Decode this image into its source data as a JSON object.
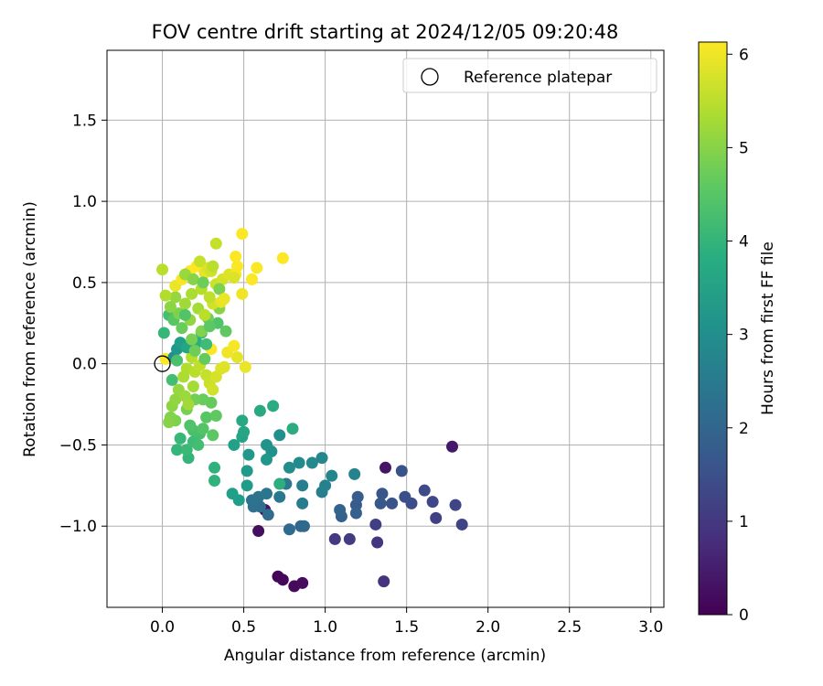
{
  "chart_data": {
    "type": "scatter",
    "title": "FOV centre drift starting at 2024/12/05 09:20:48",
    "xlabel": "Angular distance from reference (arcmin)",
    "ylabel": "Rotation from reference (arcmin)",
    "xlim": [
      -0.34,
      3.08
    ],
    "ylim": [
      -1.5,
      1.93
    ],
    "x_ticks": [
      "0.0",
      "0.5",
      "1.0",
      "1.5",
      "2.0",
      "2.5",
      "3.0"
    ],
    "y_ticks": [
      "−1.0",
      "−0.5",
      "0.0",
      "0.5",
      "1.0",
      "1.5"
    ],
    "grid": true,
    "legend": {
      "position": "top-right",
      "entries": [
        "Reference platepar"
      ]
    },
    "reference_point": {
      "x": 0.0,
      "y": 0.0
    },
    "colorbar": {
      "label": "Hours from first FF file",
      "range": [
        0,
        6.13
      ],
      "ticks": [
        "0",
        "1",
        "2",
        "3",
        "4",
        "5",
        "6"
      ],
      "colormap": "viridis"
    },
    "points": [
      [
        0.71,
        -1.31,
        0.05
      ],
      [
        0.74,
        -1.33,
        0.1
      ],
      [
        0.81,
        -1.37,
        0.15
      ],
      [
        0.86,
        -1.35,
        0.2
      ],
      [
        0.59,
        -1.03,
        0.25
      ],
      [
        0.63,
        -0.9,
        0.3
      ],
      [
        1.37,
        -0.64,
        0.35
      ],
      [
        1.78,
        -0.51,
        0.4
      ],
      [
        1.36,
        -1.34,
        0.9
      ],
      [
        1.32,
        -1.1,
        1.0
      ],
      [
        1.06,
        -1.08,
        1.05
      ],
      [
        1.15,
        -1.08,
        1.1
      ],
      [
        1.31,
        -0.99,
        1.15
      ],
      [
        1.68,
        -0.95,
        1.2
      ],
      [
        1.84,
        -0.99,
        1.25
      ],
      [
        1.8,
        -0.87,
        1.3
      ],
      [
        1.66,
        -0.85,
        1.35
      ],
      [
        1.61,
        -0.78,
        1.4
      ],
      [
        1.53,
        -0.86,
        1.45
      ],
      [
        1.49,
        -0.82,
        1.5
      ],
      [
        1.47,
        -0.66,
        1.55
      ],
      [
        1.41,
        -0.86,
        1.6
      ],
      [
        1.35,
        -0.8,
        1.65
      ],
      [
        1.34,
        -0.86,
        1.7
      ],
      [
        1.19,
        -0.87,
        1.75
      ],
      [
        1.2,
        -0.82,
        1.8
      ],
      [
        1.19,
        -0.92,
        1.85
      ],
      [
        1.1,
        -0.94,
        1.9
      ],
      [
        1.09,
        -0.9,
        1.95
      ],
      [
        0.85,
        -1.0,
        2.0
      ],
      [
        0.87,
        -1.0,
        2.05
      ],
      [
        0.78,
        -1.02,
        2.1
      ],
      [
        0.65,
        -0.93,
        2.15
      ],
      [
        0.6,
        -0.88,
        2.2
      ],
      [
        0.56,
        -0.88,
        2.25
      ],
      [
        0.55,
        -0.84,
        2.3
      ],
      [
        0.59,
        -0.82,
        2.35
      ],
      [
        0.64,
        -0.8,
        2.4
      ],
      [
        0.72,
        -0.82,
        2.45
      ],
      [
        0.76,
        -0.74,
        2.5
      ],
      [
        0.86,
        -0.86,
        2.55
      ],
      [
        0.86,
        -0.75,
        2.6
      ],
      [
        0.98,
        -0.79,
        2.65
      ],
      [
        1.0,
        -0.75,
        2.7
      ],
      [
        1.18,
        -0.68,
        2.75
      ],
      [
        1.04,
        -0.69,
        2.8
      ],
      [
        0.98,
        -0.58,
        2.85
      ],
      [
        0.92,
        -0.61,
        2.9
      ],
      [
        0.84,
        -0.61,
        2.95
      ],
      [
        0.78,
        -0.64,
        3.0
      ],
      [
        0.72,
        -0.44,
        3.05
      ],
      [
        0.67,
        -0.54,
        3.1
      ],
      [
        0.64,
        -0.5,
        3.15
      ],
      [
        0.64,
        -0.59,
        3.2
      ],
      [
        0.53,
        -0.56,
        3.25
      ],
      [
        0.52,
        -0.66,
        3.3
      ],
      [
        0.52,
        -0.75,
        3.35
      ],
      [
        0.47,
        -0.84,
        3.4
      ],
      [
        0.43,
        -0.8,
        3.45
      ],
      [
        0.44,
        -0.5,
        3.5
      ],
      [
        0.49,
        -0.45,
        3.55
      ],
      [
        0.5,
        -0.42,
        3.6
      ],
      [
        0.49,
        -0.35,
        3.65
      ],
      [
        0.6,
        -0.29,
        3.7
      ],
      [
        0.68,
        -0.26,
        3.75
      ],
      [
        0.8,
        -0.4,
        3.8
      ],
      [
        0.72,
        -0.74,
        3.85
      ],
      [
        0.32,
        -0.64,
        3.9
      ],
      [
        0.32,
        -0.72,
        3.95
      ],
      [
        0.16,
        -0.58,
        4.0
      ],
      [
        0.09,
        -0.53,
        4.05
      ],
      [
        0.11,
        -0.46,
        4.1
      ],
      [
        0.15,
        -0.53,
        4.15
      ],
      [
        0.19,
        -0.48,
        4.2
      ],
      [
        0.22,
        -0.5,
        4.25
      ],
      [
        0.23,
        -0.43,
        4.3
      ],
      [
        0.19,
        -0.41,
        4.35
      ],
      [
        0.17,
        -0.38,
        4.4
      ],
      [
        0.25,
        -0.4,
        4.45
      ],
      [
        0.27,
        -0.33,
        4.5
      ],
      [
        0.31,
        -0.44,
        4.55
      ],
      [
        0.33,
        -0.32,
        4.6
      ],
      [
        0.3,
        -0.24,
        4.65
      ],
      [
        0.25,
        -0.22,
        4.7
      ],
      [
        0.2,
        -0.22,
        4.8
      ],
      [
        0.15,
        -0.28,
        4.85
      ],
      [
        0.08,
        -0.35,
        4.9
      ],
      [
        0.05,
        -0.33,
        4.95
      ],
      [
        0.04,
        -0.36,
        5.0
      ],
      [
        0.06,
        -0.26,
        5.05
      ],
      [
        0.08,
        -0.22,
        5.1
      ],
      [
        0.1,
        -0.16,
        5.15
      ],
      [
        0.14,
        -0.2,
        5.2
      ],
      [
        0.16,
        -0.25,
        5.25
      ],
      [
        0.19,
        -0.14,
        5.3
      ],
      [
        0.13,
        -0.08,
        5.35
      ],
      [
        0.15,
        -0.03,
        5.4
      ],
      [
        0.18,
        0.04,
        5.45
      ],
      [
        0.2,
        -0.05,
        5.5
      ],
      [
        0.23,
        -0.01,
        5.55
      ],
      [
        0.27,
        -0.07,
        5.6
      ],
      [
        0.29,
        -0.12,
        5.65
      ],
      [
        0.31,
        -0.16,
        5.7
      ],
      [
        0.33,
        -0.08,
        5.75
      ],
      [
        0.36,
        -0.03,
        5.8
      ],
      [
        0.38,
        -0.02,
        5.85
      ],
      [
        0.46,
        0.04,
        5.9
      ],
      [
        0.51,
        -0.02,
        5.95
      ],
      [
        0.4,
        0.07,
        6.0
      ],
      [
        0.44,
        0.11,
        6.05
      ],
      [
        0.3,
        0.09,
        6.1
      ],
      [
        0.02,
        0.03,
        6.12
      ],
      [
        0.07,
        0.04,
        3.0
      ],
      [
        0.09,
        0.09,
        3.2
      ],
      [
        0.11,
        0.13,
        3.4
      ],
      [
        0.15,
        0.1,
        3.6
      ],
      [
        0.21,
        0.13,
        3.8
      ],
      [
        0.24,
        0.19,
        4.0
      ],
      [
        0.27,
        0.12,
        4.2
      ],
      [
        0.34,
        0.25,
        4.4
      ],
      [
        0.39,
        0.2,
        4.6
      ],
      [
        0.28,
        0.28,
        4.8
      ],
      [
        0.35,
        0.34,
        5.0
      ],
      [
        0.01,
        0.19,
        4.1
      ],
      [
        0.04,
        0.3,
        4.3
      ],
      [
        0.07,
        0.27,
        4.5
      ],
      [
        0.12,
        0.22,
        4.7
      ],
      [
        0.1,
        0.31,
        4.9
      ],
      [
        0.17,
        0.27,
        5.1
      ],
      [
        0.22,
        0.34,
        5.3
      ],
      [
        0.26,
        0.3,
        5.5
      ],
      [
        0.31,
        0.37,
        5.7
      ],
      [
        0.36,
        0.38,
        5.9
      ],
      [
        0.05,
        0.35,
        5.05
      ],
      [
        0.08,
        0.41,
        5.15
      ],
      [
        0.14,
        0.37,
        5.25
      ],
      [
        0.18,
        0.43,
        5.35
      ],
      [
        0.24,
        0.46,
        5.45
      ],
      [
        0.29,
        0.41,
        5.55
      ],
      [
        0.33,
        0.49,
        5.65
      ],
      [
        0.37,
        0.52,
        5.75
      ],
      [
        0.41,
        0.55,
        5.85
      ],
      [
        0.08,
        0.48,
        5.95
      ],
      [
        0.12,
        0.52,
        6.05
      ],
      [
        0.17,
        0.57,
        6.1
      ],
      [
        0.21,
        0.6,
        6.12
      ],
      [
        0.26,
        0.56,
        5.9
      ],
      [
        0.28,
        0.59,
        5.8
      ],
      [
        0.3,
        0.57,
        5.7
      ],
      [
        0.23,
        0.63,
        5.6
      ],
      [
        0.0,
        0.58,
        5.5
      ],
      [
        0.02,
        0.42,
        5.4
      ],
      [
        0.14,
        0.55,
        5.2
      ],
      [
        0.19,
        0.52,
        5.0
      ],
      [
        0.35,
        0.46,
        4.9
      ],
      [
        0.25,
        0.5,
        4.75
      ],
      [
        0.45,
        0.66,
        6.12
      ],
      [
        0.49,
        0.8,
        6.12
      ],
      [
        0.74,
        0.65,
        6.12
      ],
      [
        0.55,
        0.52,
        6.1
      ],
      [
        0.58,
        0.59,
        6.1
      ],
      [
        0.46,
        0.6,
        6.1
      ],
      [
        0.45,
        0.55,
        6.05
      ],
      [
        0.49,
        0.43,
        6.0
      ],
      [
        0.38,
        0.4,
        5.95
      ],
      [
        0.44,
        0.53,
        5.8
      ],
      [
        0.33,
        0.74,
        5.6
      ],
      [
        0.31,
        0.6,
        5.5
      ],
      [
        0.24,
        0.2,
        4.95
      ],
      [
        0.18,
        0.15,
        4.85
      ],
      [
        0.2,
        0.08,
        4.75
      ],
      [
        0.26,
        0.03,
        4.65
      ],
      [
        0.29,
        0.23,
        4.55
      ],
      [
        0.14,
        0.3,
        4.45
      ],
      [
        0.09,
        0.02,
        4.35
      ],
      [
        0.06,
        -0.1,
        4.25
      ]
    ]
  }
}
